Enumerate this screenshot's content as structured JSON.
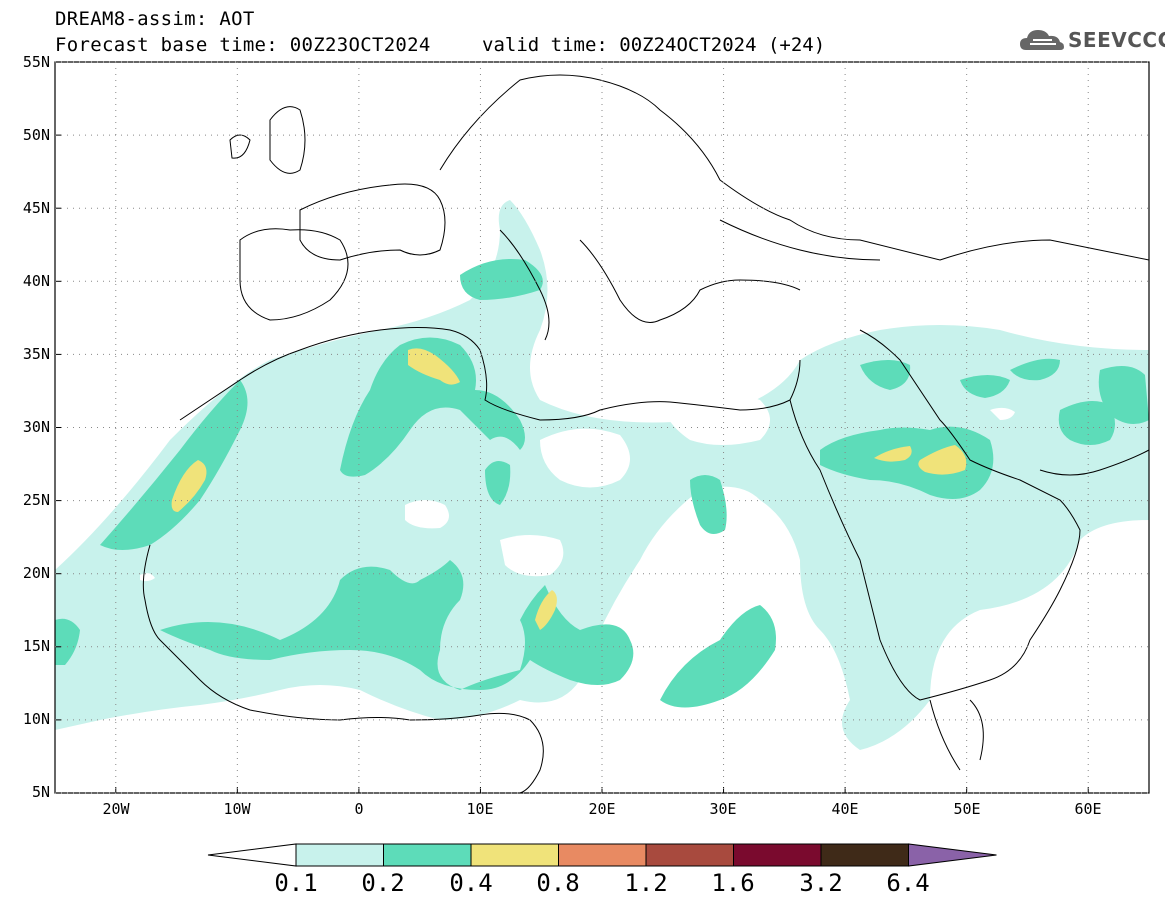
{
  "header": {
    "title_line1": "DREAM8-assim: AOT",
    "title_line2": "Forecast base time: 00Z23OCT2024",
    "valid_time": "valid time: 00Z24OCT2024 (+24)",
    "logo_text": "SEEVCCC"
  },
  "axes": {
    "lat_labels": [
      "55N",
      "50N",
      "45N",
      "40N",
      "35N",
      "30N",
      "25N",
      "20N",
      "15N",
      "10N",
      "5N"
    ],
    "lon_labels": [
      "20W",
      "10W",
      "0",
      "10E",
      "20E",
      "30E",
      "40E",
      "50E",
      "60E"
    ]
  },
  "colorbar": {
    "labels": [
      "0.1",
      "0.2",
      "0.4",
      "0.8",
      "1.2",
      "1.6",
      "3.2",
      "6.4"
    ],
    "colors": [
      "#ffffff",
      "#c8f2ec",
      "#5ddcb9",
      "#f0e37a",
      "#e88a62",
      "#a84a3e",
      "#7a0a2e",
      "#3f2a18",
      "#8a62a8"
    ]
  },
  "colors": {
    "c1": "#c8f2ec",
    "c2": "#5ddcb9",
    "c3": "#f0e37a"
  }
}
